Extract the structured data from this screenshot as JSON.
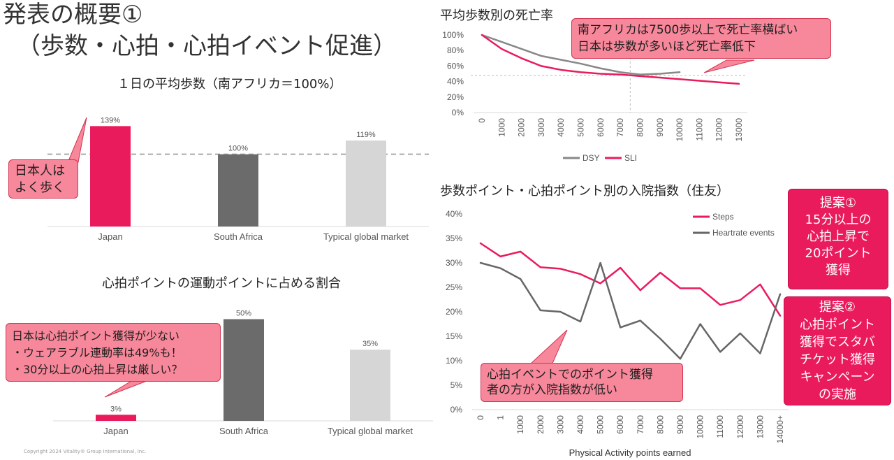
{
  "title": {
    "line1": "発表の概要①",
    "line2": "（歩数・心拍・心拍イベント促進）"
  },
  "copyright": "Copyright 2024 Vitality® Group International, Inc.",
  "colors": {
    "pink": "#ea1b5c",
    "gray": "#6b6b6b",
    "light_gray": "#d6d6d6"
  },
  "callouts": {
    "japan_walks": "日本人は\nよく歩く",
    "heart_points": "日本は心拍ポイント獲得が少ない\n・ウェアラブル連動率は49%も！\n・30分以上の心拍上昇は厳しい？",
    "mortality": "南アフリカは7500歩以上で死亡率横ばい\n日本は歩数が多いほど死亡率低下",
    "heart_events": "心拍イベントでのポイント獲得\n者の方が入院指数が低い",
    "proposal1": "提案①\n15分以上の\n心拍上昇で\n20ポイント\n獲得",
    "proposal2": "提案②\n心拍ポイント\n獲得でスタバ\nチケット獲得\nキャンペーン\nの実施"
  },
  "chart_data": [
    {
      "type": "bar",
      "title": "１日の平均歩数（南アフリカ＝100%）",
      "categories": [
        "Japan",
        "South Africa",
        "Typical global market"
      ],
      "values": [
        139,
        100,
        119
      ],
      "labels": [
        "139%",
        "100%",
        "119%"
      ],
      "colors": [
        "#ea1b5c",
        "#6b6b6b",
        "#d6d6d6"
      ],
      "reference_line": 100,
      "ylim": [
        0,
        150
      ]
    },
    {
      "type": "bar",
      "title": "心拍ポイントの運動ポイントに占める割合",
      "categories": [
        "Japan",
        "South Africa",
        "Typical global market"
      ],
      "values": [
        3,
        50,
        35
      ],
      "labels": [
        "3%",
        "50%",
        "35%"
      ],
      "colors": [
        "#ea1b5c",
        "#6b6b6b",
        "#d6d6d6"
      ],
      "ylim": [
        0,
        55
      ]
    },
    {
      "type": "line",
      "title": "平均歩数別の死亡率",
      "x": [
        "0",
        "1000",
        "2000",
        "3000",
        "4000",
        "5000",
        "6000",
        "7000",
        "8000",
        "9000",
        "10000",
        "11000",
        "12000",
        "13000"
      ],
      "yticks": [
        "100%",
        "80%",
        "60%",
        "40%",
        "20%",
        "0%"
      ],
      "ylim": [
        0,
        100
      ],
      "reference_y": 48,
      "reference_x": 7500,
      "series": [
        {
          "name": "DSY",
          "color": "#888888",
          "values": [
            100,
            91,
            82,
            73,
            68,
            63,
            57,
            52,
            49,
            50,
            52,
            null,
            null,
            null
          ]
        },
        {
          "name": "SLI",
          "color": "#ea1b5c",
          "values": [
            100,
            82,
            70,
            60,
            55,
            52,
            50,
            49,
            47,
            45,
            43,
            41,
            39,
            37
          ]
        }
      ]
    },
    {
      "type": "line",
      "title": "歩数ポイント・心拍ポイント別の入院指数（住友）",
      "xlabel": "Physical Activity points earned",
      "x": [
        "0",
        "1",
        "1000",
        "2000",
        "3000",
        "4000",
        "5000",
        "6000",
        "7000",
        "8000",
        "9000",
        "10000",
        "11000",
        "12000",
        "13000",
        "14000+"
      ],
      "yticks": [
        "40%",
        "35%",
        "30%",
        "25%",
        "20%",
        "15%",
        "10%",
        "5%",
        "0%"
      ],
      "ylim": [
        0,
        40
      ],
      "series": [
        {
          "name": "Steps",
          "color": "#ea1b5c",
          "values": [
            34,
            31.3,
            32.3,
            29.1,
            28.8,
            27.7,
            25.8,
            29,
            24.4,
            28,
            24.8,
            24.8,
            21.4,
            22.4,
            25.6,
            19.2
          ]
        },
        {
          "name": "Heartrate events",
          "color": "#666666",
          "values": [
            30,
            28.9,
            26.7,
            20.3,
            20,
            18,
            30,
            16.8,
            18.2,
            14.5,
            10.4,
            17.5,
            11.8,
            15.6,
            11.5,
            23.6
          ]
        }
      ]
    }
  ]
}
